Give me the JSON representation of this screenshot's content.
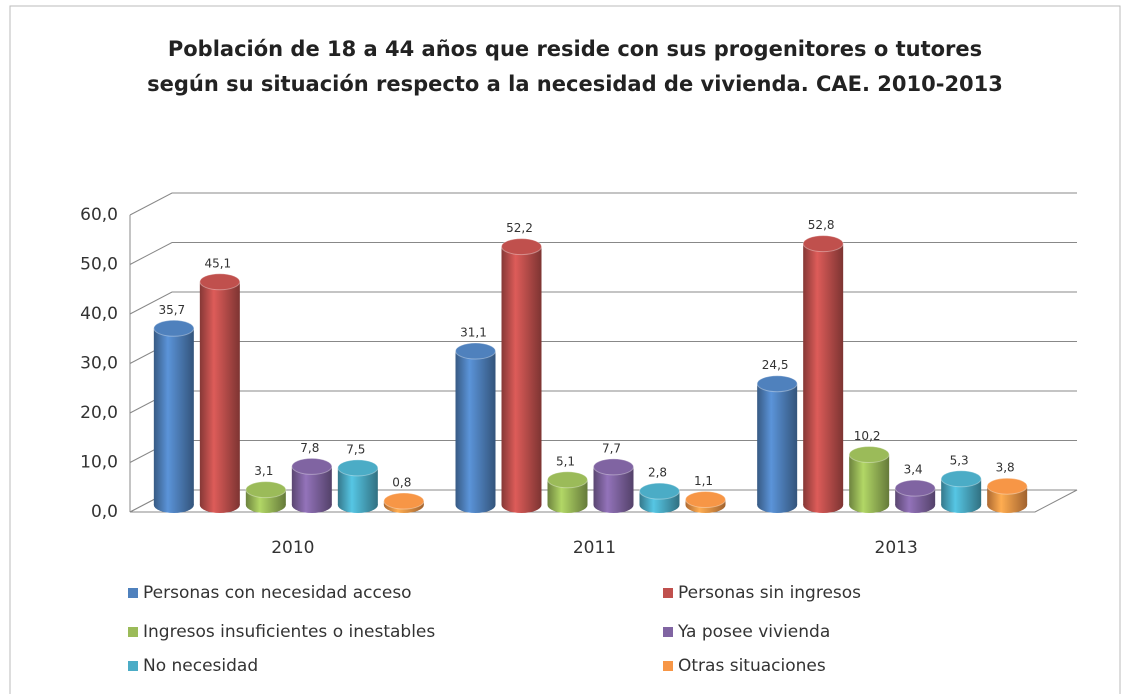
{
  "chart_data": {
    "type": "bar3d",
    "title": [
      "Población de 18 a 44 años que reside con sus progenitores o tutores",
      "según su situación respecto a la necesidad de vivienda. CAE. 2010-2013"
    ],
    "categories": [
      "2010",
      "2011",
      "2013"
    ],
    "series": [
      {
        "name": "Personas con necesidad acceso",
        "color": "#4f81bd",
        "values": [
          35.7,
          31.1,
          24.5
        ],
        "value_labels": [
          "35,7",
          "31,1",
          "24,5"
        ]
      },
      {
        "name": "Personas sin ingresos",
        "color": "#c0504d",
        "values": [
          45.1,
          52.2,
          52.8
        ],
        "value_labels": [
          "45,1",
          "52,2",
          "52,8"
        ]
      },
      {
        "name": "Ingresos insuficientes o inestables",
        "color": "#9bbb59",
        "values": [
          3.1,
          5.1,
          10.2
        ],
        "value_labels": [
          "3,1",
          "5,1",
          "10,2"
        ]
      },
      {
        "name": "Ya posee vivienda",
        "color": "#8064a2",
        "values": [
          7.8,
          7.7,
          3.4
        ],
        "value_labels": [
          "7,8",
          "7,7",
          "3,4"
        ]
      },
      {
        "name": "No necesidad",
        "color": "#4bacc6",
        "values": [
          7.5,
          2.8,
          5.3
        ],
        "value_labels": [
          "7,5",
          "2,8",
          "5,3"
        ]
      },
      {
        "name": "Otras situaciones",
        "color": "#f79646",
        "values": [
          0.8,
          1.1,
          3.8
        ],
        "value_labels": [
          "0,8",
          "1,1",
          "3,8"
        ]
      }
    ],
    "ylim": [
      0,
      60
    ],
    "yticks": [
      {
        "value": 0,
        "label": "0,0"
      },
      {
        "value": 10,
        "label": "10,0"
      },
      {
        "value": 20,
        "label": "20,0"
      },
      {
        "value": 30,
        "label": "30,0"
      },
      {
        "value": 40,
        "label": "40,0"
      },
      {
        "value": 50,
        "label": "50,0"
      },
      {
        "value": 60,
        "label": "60,0"
      }
    ],
    "grid": true
  }
}
